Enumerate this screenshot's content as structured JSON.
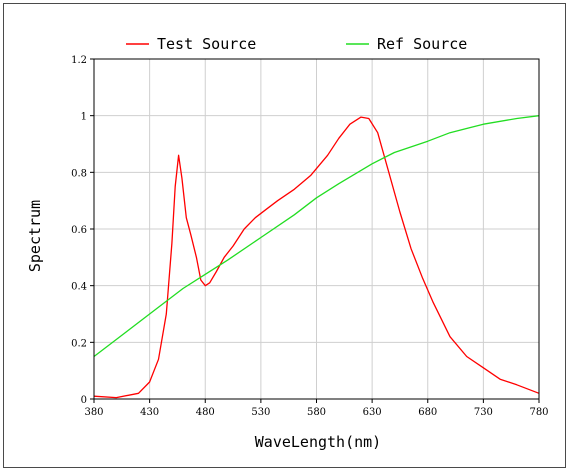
{
  "chart_data": {
    "type": "line",
    "xlabel": "WaveLength(nm)",
    "ylabel": "Spectrum",
    "xlim": [
      380,
      780
    ],
    "ylim": [
      0,
      1.2
    ],
    "x_ticks": [
      "380",
      "430",
      "480",
      "530",
      "580",
      "630",
      "680",
      "730",
      "780"
    ],
    "y_ticks": [
      "0",
      "0.2",
      "0.4",
      "0.6",
      "0.8",
      "1",
      "1.2"
    ],
    "grid": true,
    "legend_position": "top",
    "series": [
      {
        "name": "Test Source",
        "color": "#ff0000",
        "points": [
          [
            380,
            0.01
          ],
          [
            400,
            0.005
          ],
          [
            420,
            0.02
          ],
          [
            430,
            0.06
          ],
          [
            438,
            0.14
          ],
          [
            445,
            0.3
          ],
          [
            450,
            0.55
          ],
          [
            453,
            0.75
          ],
          [
            456,
            0.86
          ],
          [
            459,
            0.78
          ],
          [
            463,
            0.64
          ],
          [
            467,
            0.58
          ],
          [
            472,
            0.5
          ],
          [
            476,
            0.42
          ],
          [
            480,
            0.4
          ],
          [
            484,
            0.41
          ],
          [
            490,
            0.45
          ],
          [
            497,
            0.5
          ],
          [
            505,
            0.54
          ],
          [
            515,
            0.6
          ],
          [
            525,
            0.64
          ],
          [
            535,
            0.67
          ],
          [
            545,
            0.7
          ],
          [
            560,
            0.74
          ],
          [
            575,
            0.79
          ],
          [
            590,
            0.86
          ],
          [
            600,
            0.92
          ],
          [
            610,
            0.97
          ],
          [
            620,
            0.995
          ],
          [
            627,
            0.99
          ],
          [
            635,
            0.94
          ],
          [
            645,
            0.8
          ],
          [
            655,
            0.66
          ],
          [
            665,
            0.53
          ],
          [
            675,
            0.43
          ],
          [
            685,
            0.34
          ],
          [
            700,
            0.22
          ],
          [
            715,
            0.15
          ],
          [
            730,
            0.11
          ],
          [
            745,
            0.07
          ],
          [
            760,
            0.05
          ],
          [
            780,
            0.02
          ]
        ]
      },
      {
        "name": "Ref Source",
        "color": "#22dd22",
        "points": [
          [
            380,
            0.15
          ],
          [
            400,
            0.21
          ],
          [
            430,
            0.3
          ],
          [
            460,
            0.39
          ],
          [
            480,
            0.44
          ],
          [
            500,
            0.49
          ],
          [
            530,
            0.57
          ],
          [
            560,
            0.65
          ],
          [
            580,
            0.71
          ],
          [
            600,
            0.76
          ],
          [
            630,
            0.83
          ],
          [
            650,
            0.87
          ],
          [
            680,
            0.91
          ],
          [
            700,
            0.94
          ],
          [
            730,
            0.97
          ],
          [
            760,
            0.99
          ],
          [
            780,
            1.0
          ]
        ]
      }
    ]
  }
}
